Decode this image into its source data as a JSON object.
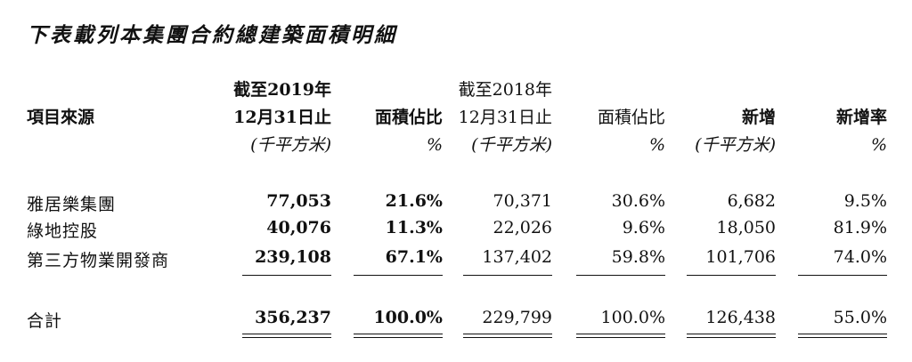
{
  "title": "下表載列本集團合約總建築面積明細",
  "headers": {
    "source": "項目來源",
    "c1": [
      "截至2019年",
      "12月31日止",
      "(千平方米)"
    ],
    "c2": [
      "面積佔比",
      "%"
    ],
    "c3": [
      "截至2018年",
      "12月31日止",
      "(千平方米)"
    ],
    "c4": [
      "面積佔比",
      "%"
    ],
    "c5": [
      "新增",
      "(千平方米)"
    ],
    "c6": [
      "新增率",
      "%"
    ]
  },
  "rows": [
    {
      "label": "雅居樂集團",
      "c1": "77,053",
      "c2": "21.6%",
      "c3": "70,371",
      "c4": "30.6%",
      "c5": "6,682",
      "c6": "9.5%"
    },
    {
      "label": "綠地控股",
      "c1": "40,076",
      "c2": "11.3%",
      "c3": "22,026",
      "c4": "9.6%",
      "c5": "18,050",
      "c6": "81.9%"
    },
    {
      "label": "第三方物業開發商",
      "c1": "239,108",
      "c2": "67.1%",
      "c3": "137,402",
      "c4": "59.8%",
      "c5": "101,706",
      "c6": "74.0%"
    }
  ],
  "total": {
    "label": "合計",
    "c1": "356,237",
    "c2": "100.0%",
    "c3": "229,799",
    "c4": "100.0%",
    "c5": "126,438",
    "c6": "55.0%"
  }
}
